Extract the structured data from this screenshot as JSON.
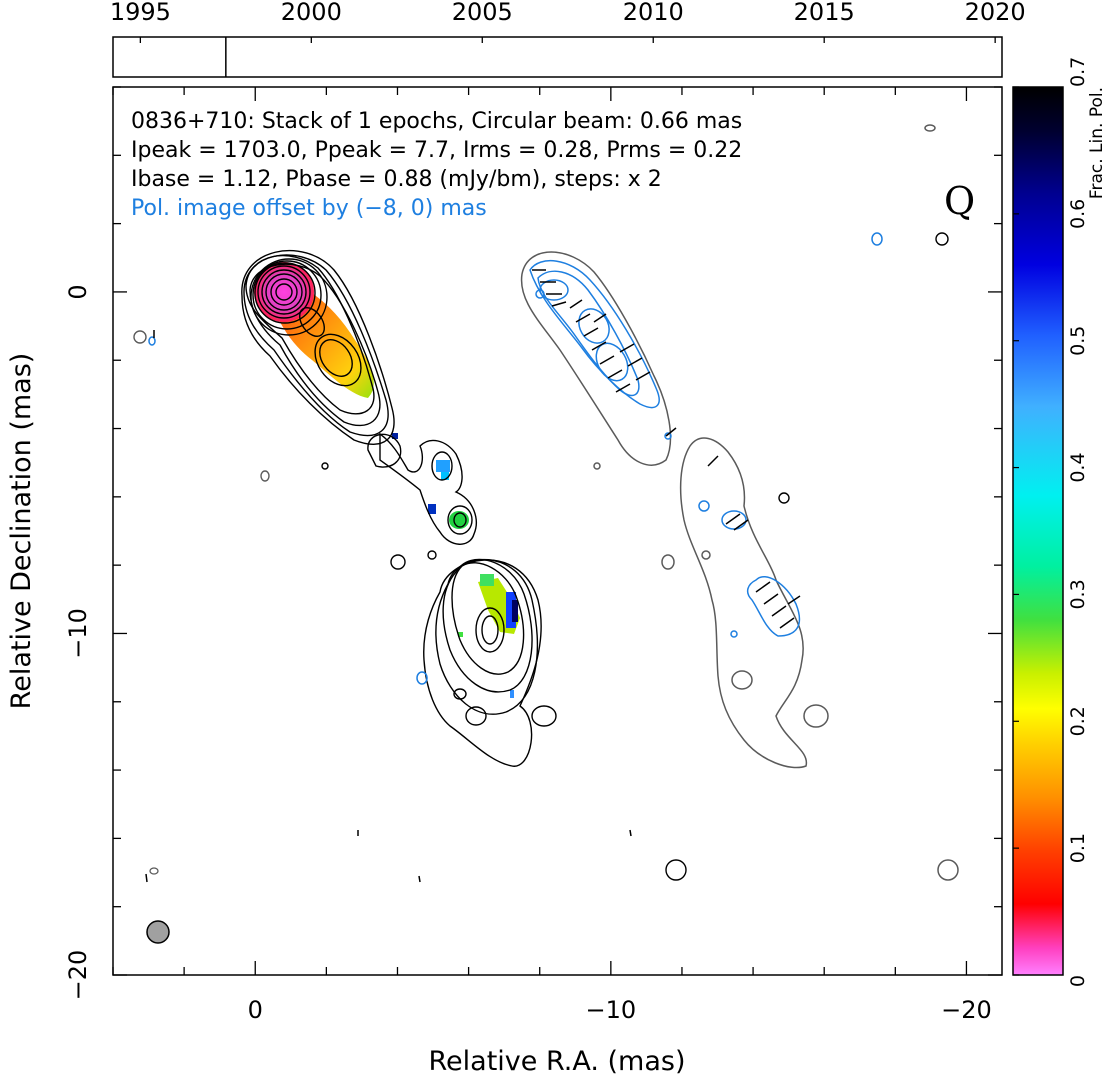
{
  "chart_data": {
    "type": "scatter",
    "source_name": "0836+710",
    "header_lines": [
      "0836+710: Stack of 1 epochs, Circular beam: 0.66 mas",
      "Ipeak = 1703.0, Ppeak = 7.7, Irms = 0.28, Prms = 0.22",
      "Ibase = 1.12, Pbase = 0.88 (mJy/bm), steps: x 2"
    ],
    "offset_note": "Pol. image offset by (−8, 0) mas",
    "band_label": "Q",
    "xlabel": "Relative R.A. (mas)",
    "ylabel": "Relative Declination (mas)",
    "xlim": [
      4,
      -21
    ],
    "ylim": [
      -20,
      6
    ],
    "x_ticks": [
      0,
      -10,
      -20
    ],
    "x_tick_labels": [
      "0",
      "−10",
      "−20"
    ],
    "y_ticks": [
      0,
      -10,
      -20
    ],
    "y_tick_labels": [
      "0",
      "−10",
      "−20"
    ],
    "timeline": {
      "years": [
        1995,
        2000,
        2005,
        2010,
        2015,
        2020
      ],
      "range": [
        1994.2,
        2020.2
      ],
      "epochs": [
        1997.5
      ]
    },
    "colorbar": {
      "label": "Frac. Lin. Pol.",
      "range": [
        0,
        0.7
      ],
      "ticks": [
        "0",
        "0.1",
        "0.2",
        "0.3",
        "0.4",
        "0.5",
        "0.6",
        "0.7"
      ]
    },
    "beam_mas": 0.66,
    "core_position": [
      0,
      0
    ],
    "stokes_i_features": [
      {
        "x": 0,
        "y": 0,
        "name": "core"
      },
      {
        "x": -1.6,
        "y": -2.0
      },
      {
        "x": -2.8,
        "y": -4.6
      },
      {
        "x": -5.1,
        "y": -6.8
      },
      {
        "x": -6.1,
        "y": -10.0
      }
    ],
    "frac_pol_points": [
      {
        "x": -0.8,
        "y": -0.9,
        "value": 0.08
      },
      {
        "x": -1.5,
        "y": -2.2,
        "value": 0.12
      },
      {
        "x": -2.2,
        "y": -3.0,
        "value": 0.16
      },
      {
        "x": -4.7,
        "y": -5.2,
        "value": 0.38
      },
      {
        "x": -5.1,
        "y": -6.8,
        "value": 0.24
      },
      {
        "x": -5.9,
        "y": -9.3,
        "value": 0.22
      },
      {
        "x": -6.6,
        "y": -9.7,
        "value": 0.52
      }
    ]
  },
  "colors": {
    "stokes_i_contour": "#000000",
    "pol_contour": "#1e7fe0",
    "offset_i_contour": "#5a5a5a",
    "beam_fill": "#a0a0a0"
  }
}
